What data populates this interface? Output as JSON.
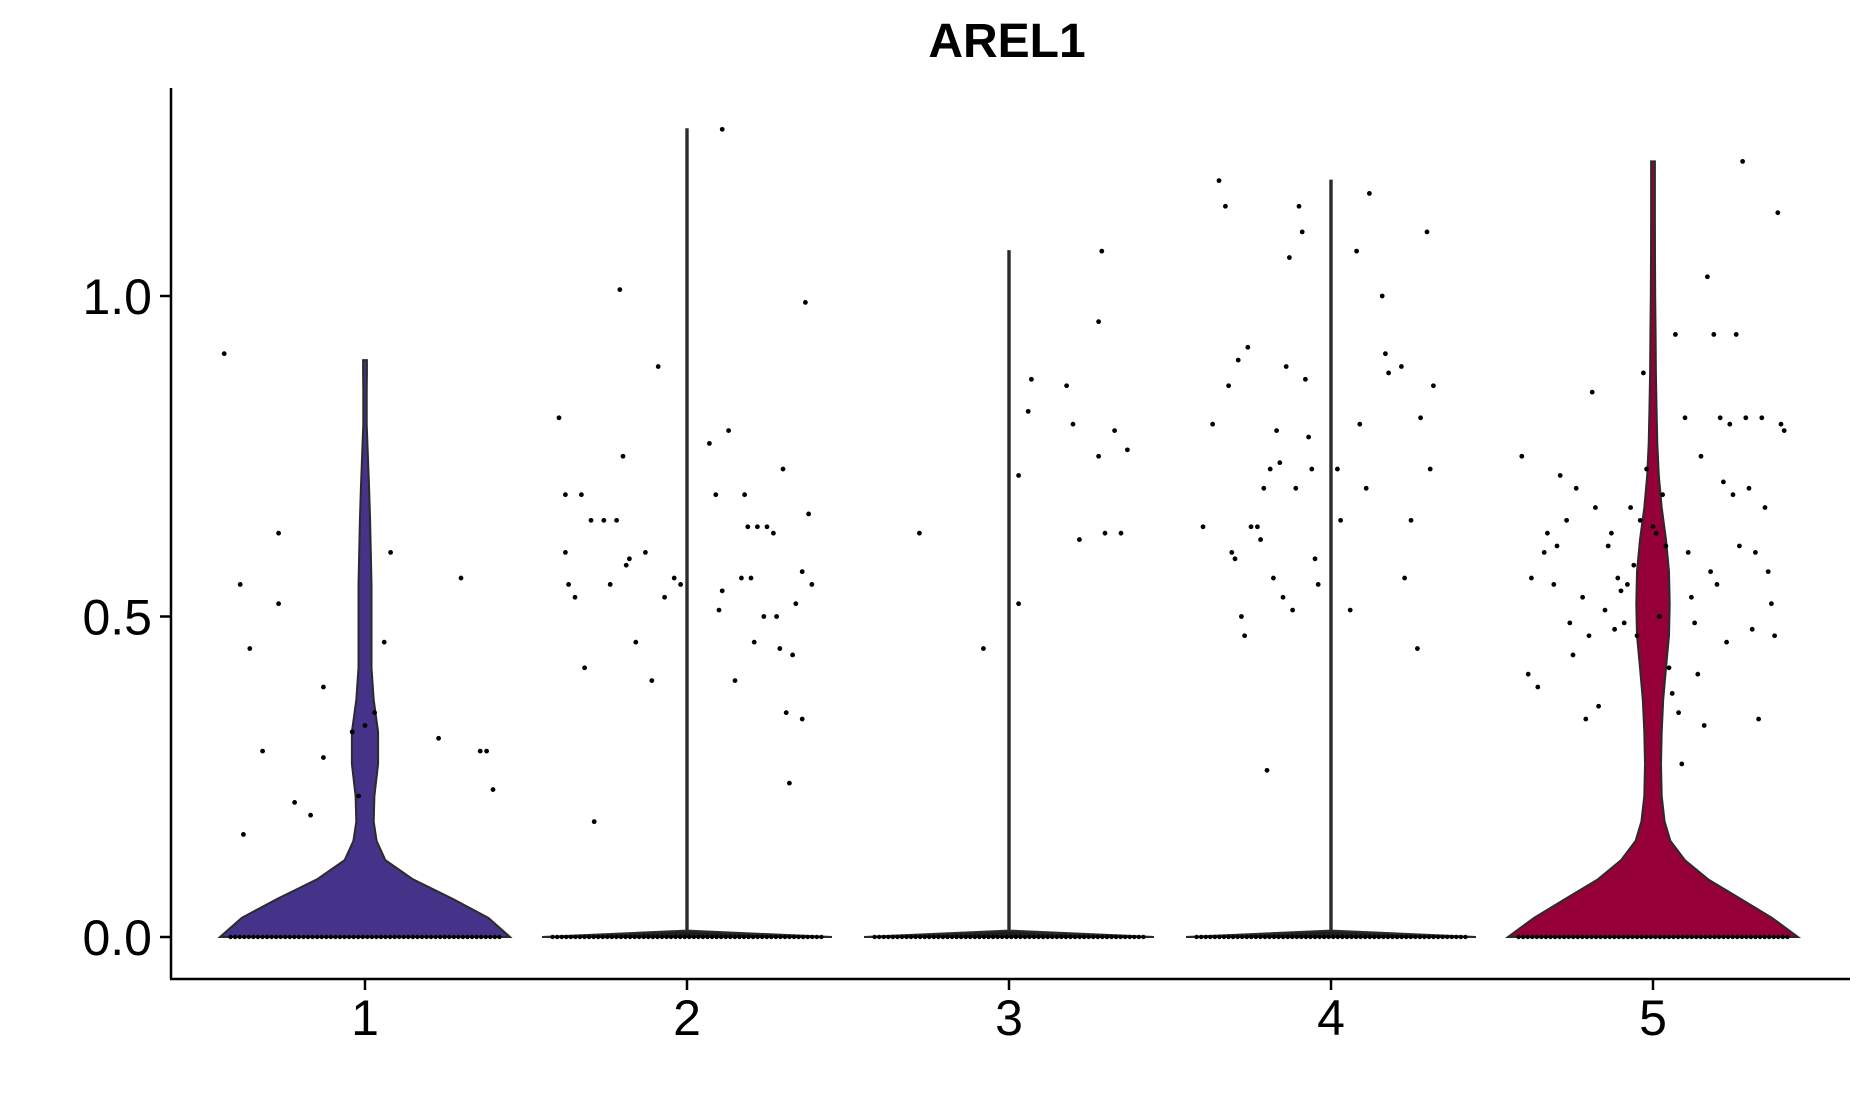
{
  "chart_data": {
    "type": "violin",
    "title": "AREL1",
    "xlabel": "",
    "ylabel": "",
    "categories": [
      "1",
      "2",
      "3",
      "4",
      "5"
    ],
    "y_ticks": [
      "0.0",
      "0.5",
      "1.0"
    ],
    "ylim": [
      -0.06,
      1.33
    ],
    "legend": "none",
    "grid": false,
    "violins": [
      {
        "category": "1",
        "color": "#453289",
        "max": 0.9,
        "profile": [
          [
            0.0,
            1.0
          ],
          [
            0.03,
            0.85
          ],
          [
            0.06,
            0.6
          ],
          [
            0.09,
            0.33
          ],
          [
            0.12,
            0.14
          ],
          [
            0.15,
            0.08
          ],
          [
            0.18,
            0.06
          ],
          [
            0.22,
            0.065
          ],
          [
            0.27,
            0.09
          ],
          [
            0.32,
            0.09
          ],
          [
            0.37,
            0.06
          ],
          [
            0.42,
            0.045
          ],
          [
            0.48,
            0.045
          ],
          [
            0.55,
            0.045
          ],
          [
            0.6,
            0.04
          ],
          [
            0.65,
            0.035
          ],
          [
            0.7,
            0.028
          ],
          [
            0.75,
            0.02
          ],
          [
            0.8,
            0.012
          ],
          [
            0.85,
            0.012
          ],
          [
            0.88,
            0.013
          ],
          [
            0.9,
            0.013
          ]
        ],
        "points": [
          [
            -0.44,
            0.91
          ],
          [
            -0.39,
            0.55
          ],
          [
            -0.36,
            0.45
          ],
          [
            -0.32,
            0.29
          ],
          [
            -0.27,
            0.63
          ],
          [
            -0.27,
            0.52
          ],
          [
            -0.22,
            0.21
          ],
          [
            -0.17,
            0.19
          ],
          [
            -0.13,
            0.39
          ],
          [
            -0.13,
            0.28
          ],
          [
            -0.38,
            0.16
          ],
          [
            -0.04,
            0.32
          ],
          [
            -0.02,
            0.22
          ],
          [
            0.0,
            0.33
          ],
          [
            0.03,
            0.35
          ],
          [
            0.06,
            0.46
          ],
          [
            0.08,
            0.6
          ],
          [
            0.23,
            0.31
          ],
          [
            0.3,
            0.56
          ],
          [
            0.36,
            0.29
          ],
          [
            0.38,
            0.29
          ],
          [
            0.4,
            0.23
          ]
        ]
      },
      {
        "category": "2",
        "color": "#1e1e1e",
        "max": 1.26,
        "profile": [
          [
            0.0,
            1.0
          ],
          [
            0.01,
            0.005
          ],
          [
            1.26,
            0.005
          ]
        ],
        "points": [
          [
            -0.4,
            0.81
          ],
          [
            -0.38,
            0.69
          ],
          [
            -0.38,
            0.6
          ],
          [
            -0.37,
            0.55
          ],
          [
            -0.35,
            0.53
          ],
          [
            -0.33,
            0.69
          ],
          [
            -0.32,
            0.42
          ],
          [
            -0.3,
            0.65
          ],
          [
            -0.29,
            0.18
          ],
          [
            -0.26,
            0.65
          ],
          [
            -0.24,
            0.55
          ],
          [
            -0.22,
            0.65
          ],
          [
            -0.21,
            1.01
          ],
          [
            -0.2,
            0.75
          ],
          [
            -0.19,
            0.58
          ],
          [
            -0.18,
            0.59
          ],
          [
            -0.16,
            0.46
          ],
          [
            -0.13,
            0.6
          ],
          [
            -0.11,
            0.4
          ],
          [
            -0.09,
            0.89
          ],
          [
            -0.07,
            0.53
          ],
          [
            -0.04,
            0.56
          ],
          [
            -0.02,
            0.55
          ],
          [
            0.07,
            0.77
          ],
          [
            0.09,
            0.69
          ],
          [
            0.1,
            0.51
          ],
          [
            0.11,
            0.54
          ],
          [
            0.13,
            0.79
          ],
          [
            0.15,
            0.4
          ],
          [
            0.17,
            0.56
          ],
          [
            0.18,
            0.69
          ],
          [
            0.19,
            0.64
          ],
          [
            0.21,
            0.46
          ],
          [
            0.22,
            0.64
          ],
          [
            0.24,
            0.5
          ],
          [
            0.25,
            0.64
          ],
          [
            0.27,
            0.63
          ],
          [
            0.28,
            0.5
          ],
          [
            0.29,
            0.45
          ],
          [
            0.3,
            0.73
          ],
          [
            0.31,
            0.35
          ],
          [
            0.32,
            0.24
          ],
          [
            0.33,
            0.44
          ],
          [
            0.34,
            0.52
          ],
          [
            0.36,
            0.34
          ],
          [
            0.36,
            0.57
          ],
          [
            0.37,
            0.99
          ],
          [
            0.38,
            0.66
          ],
          [
            0.39,
            0.55
          ],
          [
            0.11,
            1.26
          ],
          [
            0.2,
            0.56
          ]
        ]
      },
      {
        "category": "3",
        "color": "#1e1e1e",
        "max": 1.07,
        "profile": [
          [
            0.0,
            1.0
          ],
          [
            0.01,
            0.005
          ],
          [
            1.07,
            0.005
          ]
        ],
        "points": [
          [
            -0.28,
            0.63
          ],
          [
            -0.08,
            0.45
          ],
          [
            0.03,
            0.52
          ],
          [
            0.03,
            0.72
          ],
          [
            0.06,
            0.82
          ],
          [
            0.07,
            0.87
          ],
          [
            0.18,
            0.86
          ],
          [
            0.2,
            0.8
          ],
          [
            0.22,
            0.62
          ],
          [
            0.28,
            0.96
          ],
          [
            0.28,
            0.75
          ],
          [
            0.29,
            1.07
          ],
          [
            0.3,
            0.63
          ],
          [
            0.33,
            0.79
          ],
          [
            0.35,
            0.63
          ],
          [
            0.37,
            0.76
          ]
        ]
      },
      {
        "category": "4",
        "color": "#1e1e1e",
        "max": 1.18,
        "profile": [
          [
            0.0,
            1.0
          ],
          [
            0.01,
            0.005
          ],
          [
            1.18,
            0.005
          ]
        ],
        "points": [
          [
            -0.4,
            0.64
          ],
          [
            -0.37,
            0.8
          ],
          [
            -0.35,
            1.18
          ],
          [
            -0.33,
            1.14
          ],
          [
            -0.32,
            0.86
          ],
          [
            -0.31,
            0.6
          ],
          [
            -0.3,
            0.59
          ],
          [
            -0.29,
            0.9
          ],
          [
            -0.28,
            0.5
          ],
          [
            -0.27,
            0.47
          ],
          [
            -0.26,
            0.92
          ],
          [
            -0.25,
            0.64
          ],
          [
            -0.23,
            0.64
          ],
          [
            -0.22,
            0.62
          ],
          [
            -0.21,
            0.7
          ],
          [
            -0.2,
            0.26
          ],
          [
            -0.19,
            0.73
          ],
          [
            -0.18,
            0.56
          ],
          [
            -0.17,
            0.79
          ],
          [
            -0.16,
            0.74
          ],
          [
            -0.15,
            0.53
          ],
          [
            -0.14,
            0.89
          ],
          [
            -0.13,
            1.06
          ],
          [
            -0.12,
            0.51
          ],
          [
            -0.11,
            0.7
          ],
          [
            -0.1,
            1.14
          ],
          [
            -0.09,
            1.1
          ],
          [
            -0.08,
            0.87
          ],
          [
            -0.07,
            0.78
          ],
          [
            -0.06,
            0.73
          ],
          [
            -0.05,
            0.59
          ],
          [
            -0.04,
            0.55
          ],
          [
            0.02,
            0.73
          ],
          [
            0.03,
            0.65
          ],
          [
            0.06,
            0.51
          ],
          [
            0.08,
            1.07
          ],
          [
            0.09,
            0.8
          ],
          [
            0.11,
            0.7
          ],
          [
            0.12,
            1.16
          ],
          [
            0.16,
            1.0
          ],
          [
            0.17,
            0.91
          ],
          [
            0.18,
            0.88
          ],
          [
            0.22,
            0.89
          ],
          [
            0.23,
            0.56
          ],
          [
            0.25,
            0.65
          ],
          [
            0.27,
            0.45
          ],
          [
            0.28,
            0.81
          ],
          [
            0.3,
            1.1
          ],
          [
            0.31,
            0.73
          ],
          [
            0.32,
            0.86
          ]
        ]
      },
      {
        "category": "5",
        "color": "#960038",
        "max": 1.21,
        "profile": [
          [
            0.0,
            1.0
          ],
          [
            0.03,
            0.82
          ],
          [
            0.06,
            0.6
          ],
          [
            0.09,
            0.38
          ],
          [
            0.12,
            0.22
          ],
          [
            0.15,
            0.12
          ],
          [
            0.18,
            0.08
          ],
          [
            0.22,
            0.06
          ],
          [
            0.27,
            0.055
          ],
          [
            0.32,
            0.06
          ],
          [
            0.37,
            0.07
          ],
          [
            0.42,
            0.09
          ],
          [
            0.47,
            0.11
          ],
          [
            0.52,
            0.115
          ],
          [
            0.57,
            0.11
          ],
          [
            0.62,
            0.09
          ],
          [
            0.67,
            0.06
          ],
          [
            0.72,
            0.04
          ],
          [
            0.77,
            0.03
          ],
          [
            0.82,
            0.025
          ],
          [
            0.88,
            0.02
          ],
          [
            0.94,
            0.018
          ],
          [
            1.0,
            0.015
          ],
          [
            1.06,
            0.014
          ],
          [
            1.12,
            0.013
          ],
          [
            1.18,
            0.013
          ],
          [
            1.21,
            0.013
          ]
        ],
        "points": [
          [
            -0.41,
            0.75
          ],
          [
            -0.39,
            0.41
          ],
          [
            -0.38,
            0.56
          ],
          [
            -0.36,
            0.39
          ],
          [
            -0.34,
            0.6
          ],
          [
            -0.33,
            0.63
          ],
          [
            -0.31,
            0.55
          ],
          [
            -0.3,
            0.61
          ],
          [
            -0.29,
            0.72
          ],
          [
            -0.27,
            0.65
          ],
          [
            -0.26,
            0.49
          ],
          [
            -0.25,
            0.44
          ],
          [
            -0.24,
            0.7
          ],
          [
            -0.22,
            0.53
          ],
          [
            -0.21,
            0.34
          ],
          [
            -0.2,
            0.47
          ],
          [
            -0.19,
            0.85
          ],
          [
            -0.18,
            0.67
          ],
          [
            -0.17,
            0.36
          ],
          [
            -0.15,
            0.51
          ],
          [
            -0.14,
            0.61
          ],
          [
            -0.13,
            0.63
          ],
          [
            -0.12,
            0.48
          ],
          [
            -0.11,
            0.56
          ],
          [
            -0.1,
            0.54
          ],
          [
            -0.09,
            0.49
          ],
          [
            -0.08,
            0.55
          ],
          [
            -0.07,
            0.67
          ],
          [
            -0.06,
            0.58
          ],
          [
            -0.05,
            0.47
          ],
          [
            -0.04,
            0.65
          ],
          [
            -0.03,
            0.88
          ],
          [
            -0.02,
            0.73
          ],
          [
            0.0,
            0.64
          ],
          [
            0.01,
            0.63
          ],
          [
            0.02,
            0.5
          ],
          [
            0.03,
            0.69
          ],
          [
            0.04,
            0.61
          ],
          [
            0.05,
            0.42
          ],
          [
            0.06,
            0.38
          ],
          [
            0.07,
            0.94
          ],
          [
            0.08,
            0.35
          ],
          [
            0.09,
            0.27
          ],
          [
            0.1,
            0.81
          ],
          [
            0.11,
            0.6
          ],
          [
            0.12,
            0.53
          ],
          [
            0.13,
            0.49
          ],
          [
            0.14,
            0.41
          ],
          [
            0.15,
            0.75
          ],
          [
            0.16,
            0.33
          ],
          [
            0.17,
            1.03
          ],
          [
            0.18,
            0.57
          ],
          [
            0.19,
            0.94
          ],
          [
            0.2,
            0.55
          ],
          [
            0.21,
            0.81
          ],
          [
            0.22,
            0.71
          ],
          [
            0.23,
            0.46
          ],
          [
            0.24,
            0.8
          ],
          [
            0.25,
            0.69
          ],
          [
            0.26,
            0.94
          ],
          [
            0.27,
            0.61
          ],
          [
            0.28,
            1.21
          ],
          [
            0.29,
            0.81
          ],
          [
            0.3,
            0.7
          ],
          [
            0.31,
            0.48
          ],
          [
            0.32,
            0.6
          ],
          [
            0.33,
            0.34
          ],
          [
            0.34,
            0.81
          ],
          [
            0.35,
            0.67
          ],
          [
            0.36,
            0.57
          ],
          [
            0.37,
            0.52
          ],
          [
            0.38,
            0.47
          ],
          [
            0.39,
            1.13
          ],
          [
            0.4,
            0.8
          ],
          [
            0.41,
            0.79
          ]
        ]
      }
    ]
  }
}
